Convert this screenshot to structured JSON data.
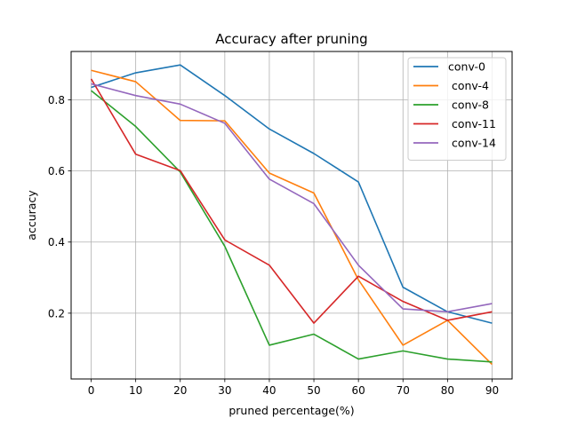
{
  "chart_data": {
    "type": "line",
    "title": "Accuracy after pruning",
    "xlabel": "pruned percentage(%)",
    "ylabel": "accuracy",
    "x": [
      0,
      10,
      20,
      30,
      40,
      50,
      60,
      70,
      80,
      90
    ],
    "x_ticks": [
      "0",
      "10",
      "20",
      "30",
      "40",
      "50",
      "60",
      "70",
      "80",
      "90"
    ],
    "y_ticks": [
      "0.2",
      "0.4",
      "0.6",
      "0.8"
    ],
    "xlim": [
      -4.5,
      94.5
    ],
    "ylim": [
      0.015,
      0.936
    ],
    "grid": true,
    "legend_position": "top-right",
    "series": [
      {
        "name": "conv-0",
        "color": "#1f77b4",
        "values": [
          0.835,
          0.876,
          0.898,
          0.812,
          0.718,
          0.649,
          0.569,
          0.273,
          0.204,
          0.172
        ]
      },
      {
        "name": " conv-4",
        "color": "#ff7f0e",
        "values": [
          0.883,
          0.851,
          0.742,
          0.741,
          0.594,
          0.538,
          0.294,
          0.11,
          0.18,
          0.056
        ]
      },
      {
        "name": " conv-8",
        "color": "#2ca02c",
        "values": [
          0.826,
          0.725,
          0.597,
          0.388,
          0.11,
          0.141,
          0.071,
          0.094,
          0.071,
          0.063
        ]
      },
      {
        "name": " conv-11",
        "color": "#d62728",
        "values": [
          0.859,
          0.647,
          0.601,
          0.406,
          0.335,
          0.172,
          0.304,
          0.233,
          0.18,
          0.204
        ]
      },
      {
        "name": " conv-14",
        "color": "#9467bd",
        "values": [
          0.845,
          0.812,
          0.788,
          0.734,
          0.577,
          0.508,
          0.335,
          0.212,
          0.204,
          0.227
        ]
      }
    ]
  }
}
